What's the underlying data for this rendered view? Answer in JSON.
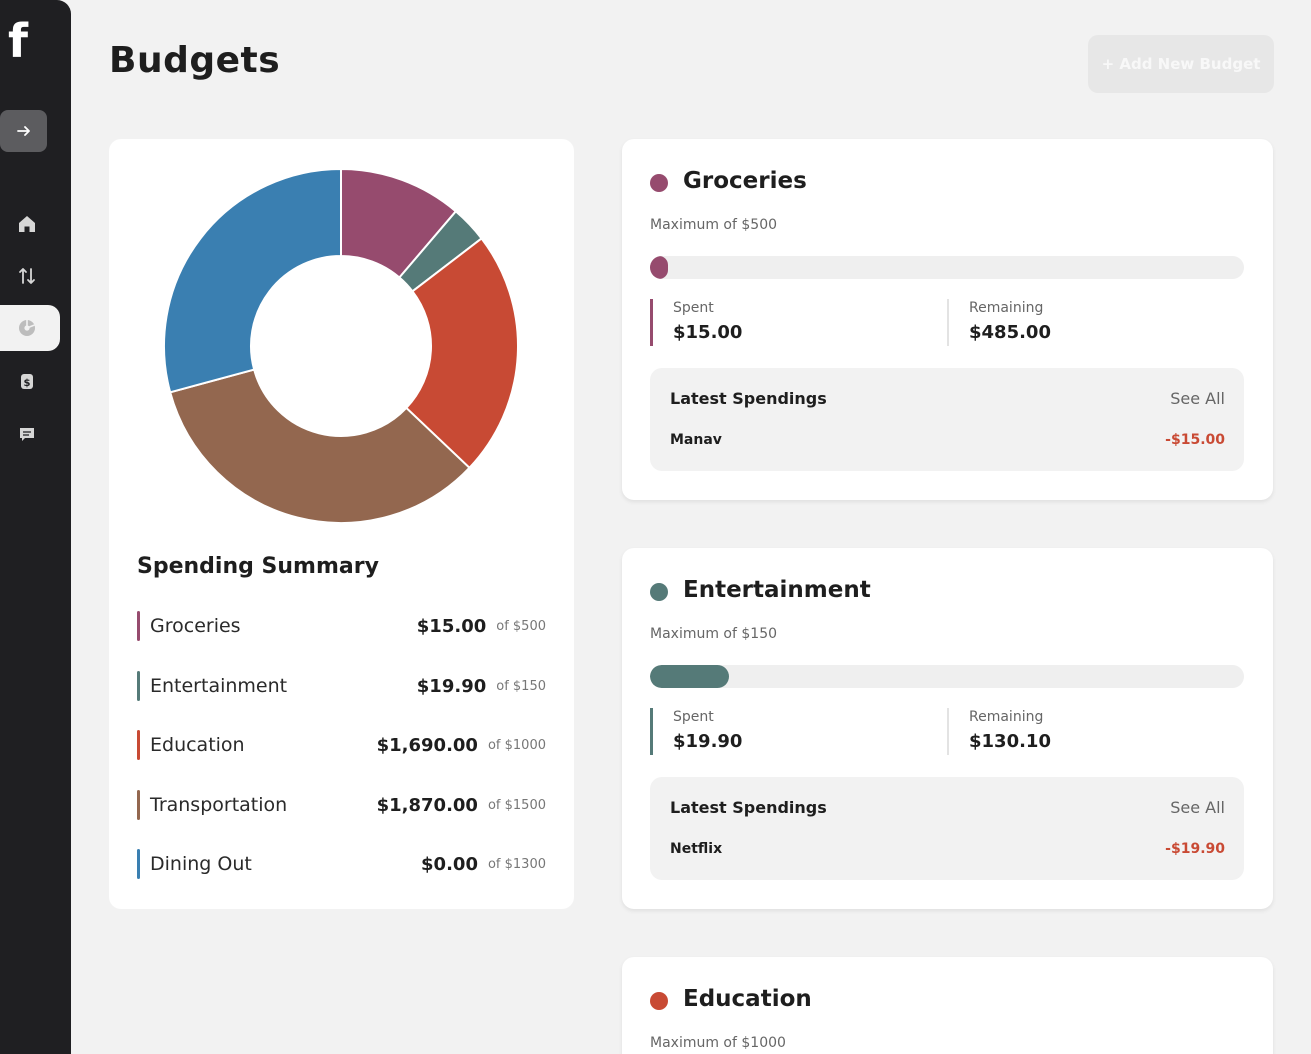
{
  "sidebar": {
    "logo": "f",
    "items": [
      {
        "name": "home-icon"
      },
      {
        "name": "transactions-icon"
      },
      {
        "name": "budgets-icon"
      },
      {
        "name": "pots-icon"
      },
      {
        "name": "bills-icon"
      }
    ]
  },
  "header": {
    "title": "Budgets",
    "add_button": "+ Add New Budget"
  },
  "summary": {
    "title": "Spending Summary",
    "items": [
      {
        "label": "Groceries",
        "amount": "$15.00",
        "max": "of $500",
        "color": "#964b6e"
      },
      {
        "label": "Entertainment",
        "amount": "$19.90",
        "max": "of $150",
        "color": "#557a78"
      },
      {
        "label": "Education",
        "amount": "$1,690.00",
        "max": "of $1000",
        "color": "#c84a34"
      },
      {
        "label": "Transportation",
        "amount": "$1,870.00",
        "max": "of $1500",
        "color": "#93674f"
      },
      {
        "label": "Dining Out",
        "amount": "$0.00",
        "max": "of $1300",
        "color": "#3a7fb1"
      }
    ]
  },
  "chart_data": {
    "type": "pie",
    "variant": "donut",
    "categories": [
      "Groceries",
      "Entertainment",
      "Education",
      "Transportation",
      "Dining Out"
    ],
    "values": [
      500,
      150,
      1000,
      1500,
      1300
    ],
    "colors": [
      "#964b6e",
      "#557a78",
      "#c84a34",
      "#93674f",
      "#3a7fb1"
    ]
  },
  "budgets": [
    {
      "name": "Groceries",
      "color": "#964b6e",
      "maximum": "Maximum of $500",
      "progress": 0.03,
      "spent_label": "Spent",
      "spent": "$15.00",
      "remaining_label": "Remaining",
      "remaining": "$485.00",
      "latest_title": "Latest Spendings",
      "see_all": "See All",
      "transaction": {
        "name": "Manav",
        "amount": "-$15.00"
      }
    },
    {
      "name": "Entertainment",
      "color": "#557a78",
      "maximum": "Maximum of $150",
      "progress": 0.133,
      "spent_label": "Spent",
      "spent": "$19.90",
      "remaining_label": "Remaining",
      "remaining": "$130.10",
      "latest_title": "Latest Spendings",
      "see_all": "See All",
      "transaction": {
        "name": "Netflix",
        "amount": "-$19.90"
      }
    },
    {
      "name": "Education",
      "color": "#c84a34",
      "maximum": "Maximum of $1000"
    }
  ]
}
